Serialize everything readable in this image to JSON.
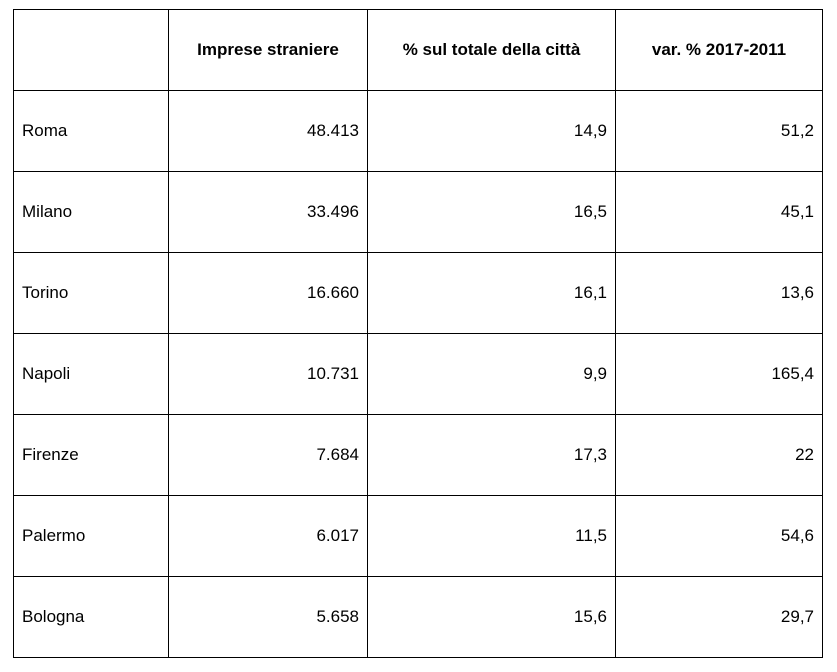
{
  "table": {
    "header": [
      "Imprese straniere",
      "% sul totale della città",
      "var. % 2017-2011"
    ],
    "rows": [
      [
        "Roma",
        "48.413",
        "14,9",
        "51,2"
      ],
      [
        "Milano",
        "33.496",
        "16,5",
        "45,1"
      ],
      [
        "Torino",
        "16.660",
        "16,1",
        "13,6"
      ],
      [
        "Napoli",
        "10.731",
        "9,9",
        "165,4"
      ],
      [
        "Firenze",
        "7.684",
        "17,3",
        "22"
      ],
      [
        "Palermo",
        "6.017",
        "11,5",
        "54,6"
      ],
      [
        "Bologna",
        "5.658",
        "15,6",
        "29,7"
      ]
    ]
  }
}
